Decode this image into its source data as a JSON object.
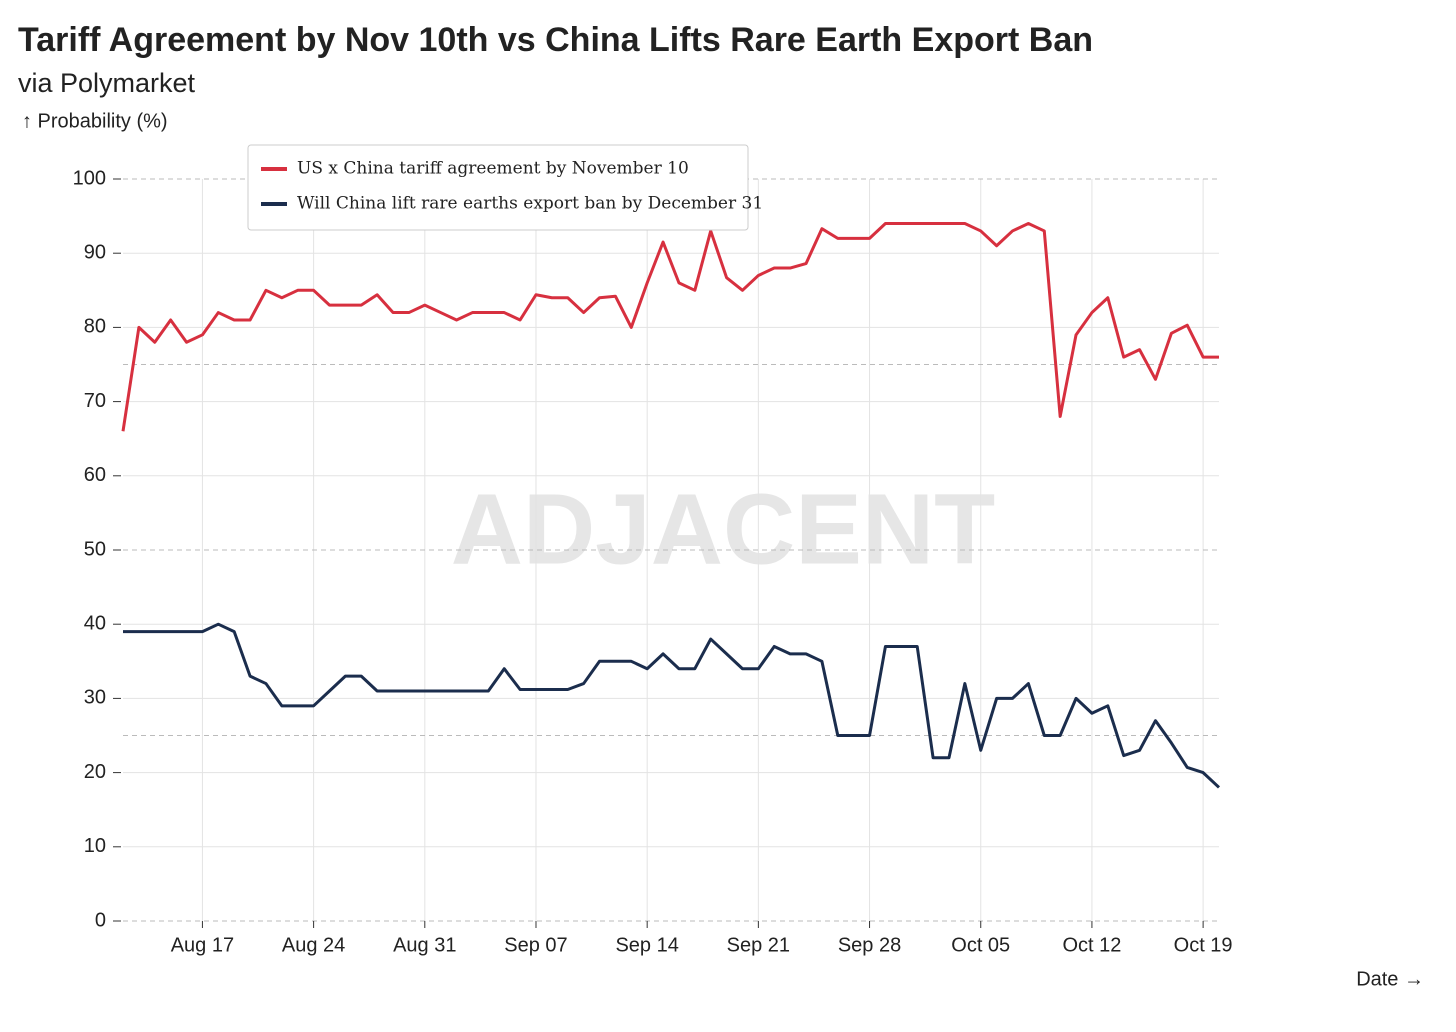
{
  "chart_data": {
    "type": "line",
    "title": "Tariff Agreement by Nov 10th vs China Lifts Rare Earth Export Ban",
    "subtitle": "via Polymarket",
    "y_label": "↑ Probability (%)",
    "x_label": "Date →",
    "watermark": "ADJACENT",
    "categories": [
      null,
      null,
      null,
      null,
      null,
      "Aug 17",
      null,
      null,
      null,
      null,
      null,
      null,
      "Aug 24",
      null,
      null,
      null,
      null,
      null,
      null,
      "Aug 31",
      null,
      null,
      null,
      null,
      null,
      null,
      "Sep 07",
      null,
      null,
      null,
      null,
      null,
      null,
      "Sep 14",
      null,
      null,
      null,
      null,
      null,
      null,
      "Sep 21",
      null,
      null,
      null,
      null,
      null,
      null,
      "Sep 28",
      null,
      null,
      null,
      null,
      null,
      null,
      "Oct 05",
      null,
      null,
      null,
      null,
      null,
      null,
      "Oct 12",
      null,
      null,
      null,
      null,
      null,
      null,
      "Oct 19",
      null
    ],
    "series": [
      {
        "name": "US x China tariff agreement by November 10",
        "color": "#d7303f",
        "values": [
          66,
          80,
          78,
          81,
          78,
          79,
          82,
          81,
          81,
          85,
          84,
          85,
          85,
          83,
          83,
          83,
          84.4,
          82,
          82,
          83,
          82,
          81,
          82,
          82,
          82,
          81,
          84.4,
          84,
          84,
          82,
          84,
          84.2,
          80,
          86,
          91.5,
          86,
          85,
          93,
          86.7,
          85,
          87,
          88,
          88,
          88.6,
          93.3,
          92,
          92,
          92,
          94,
          94,
          94,
          94,
          94,
          94,
          93,
          91,
          93,
          94,
          93,
          68,
          79,
          82,
          84,
          76,
          77,
          73,
          79.2,
          80.3,
          76,
          76
        ]
      },
      {
        "name": "Will China lift rare earths export ban by December 31",
        "color": "#1b2d4d",
        "values": [
          39,
          39,
          39,
          39,
          39,
          39,
          40,
          39,
          33,
          32,
          29,
          29,
          29,
          31,
          33,
          33,
          31,
          31,
          31,
          31,
          31,
          31,
          31,
          31,
          34,
          31.2,
          31.2,
          31.2,
          31.2,
          32,
          35,
          35,
          35,
          34,
          36,
          34,
          34,
          38,
          36,
          34,
          34,
          37,
          36,
          36,
          35,
          25,
          25,
          25,
          37,
          37,
          37,
          22,
          22,
          32,
          23,
          30,
          30,
          32,
          25,
          25,
          30,
          28,
          29,
          22.3,
          23,
          27,
          24,
          20.7,
          20,
          18
        ]
      }
    ],
    "ylim": [
      0,
      100
    ],
    "yticks": [
      0,
      10,
      20,
      30,
      40,
      50,
      60,
      70,
      80,
      90,
      100
    ],
    "dashed_lines": [
      0,
      25,
      50,
      75,
      100
    ],
    "grid": true
  }
}
